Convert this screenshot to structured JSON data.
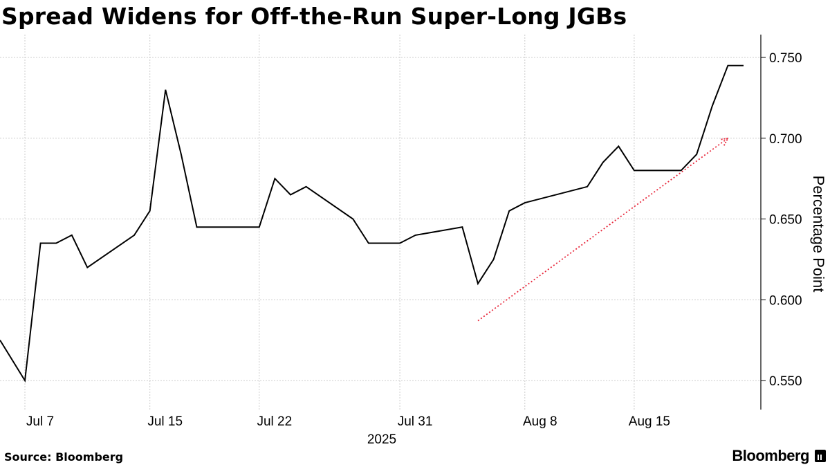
{
  "title": "Spread Widens for Off-the-Run Super-Long JGBs",
  "source": "Source: Bloomberg",
  "brand": "Bloomberg",
  "brand_icon": "bloomberg-chart-icon",
  "colors": {
    "line": "#000000",
    "arrow": "#e8273b",
    "grid": "#cccccc",
    "background": "#ffffff"
  },
  "chart_data": {
    "type": "line",
    "title": "Spread Widens for Off-the-Run Super-Long JGBs",
    "ylabel": "Percentage Point",
    "xlabel": "",
    "y_axis_side": "right",
    "ylim": [
      0.53,
      0.76
    ],
    "y_ticks": [
      0.55,
      0.6,
      0.65,
      0.7,
      0.75
    ],
    "y_tick_labels": [
      "0.550",
      "0.600",
      "0.650",
      "0.700",
      "0.750"
    ],
    "x_range": [
      "2025-07-06",
      "2025-08-22"
    ],
    "x_ticks": [
      {
        "date": "2025-07-07",
        "label": "Jul 7"
      },
      {
        "date": "2025-07-15",
        "label": "Jul 15"
      },
      {
        "date": "2025-07-22",
        "label": "Jul 22"
      },
      {
        "date": "2025-07-31",
        "label": "Jul 31"
      },
      {
        "date": "2025-08-08",
        "label": "Aug 8"
      },
      {
        "date": "2025-08-15",
        "label": "Aug 15"
      }
    ],
    "year_label": "2025",
    "grid": true,
    "series": [
      {
        "x": [
          "2025-07-04",
          "2025-07-07",
          "2025-07-08",
          "2025-07-09",
          "2025-07-10",
          "2025-07-11",
          "2025-07-14",
          "2025-07-15",
          "2025-07-16",
          "2025-07-17",
          "2025-07-18",
          "2025-07-22",
          "2025-07-23",
          "2025-07-24",
          "2025-07-25",
          "2025-07-28",
          "2025-07-29",
          "2025-07-30",
          "2025-07-31",
          "2025-08-01",
          "2025-08-04",
          "2025-08-05",
          "2025-08-06",
          "2025-08-07",
          "2025-08-08",
          "2025-08-12",
          "2025-08-13",
          "2025-08-14",
          "2025-08-15",
          "2025-08-18",
          "2025-08-19",
          "2025-08-20",
          "2025-08-21",
          "2025-08-22"
        ],
        "y": [
          0.575,
          0.55,
          0.635,
          0.635,
          0.64,
          0.62,
          0.64,
          0.655,
          0.73,
          0.69,
          0.645,
          0.645,
          0.675,
          0.665,
          0.67,
          0.65,
          0.635,
          0.635,
          0.635,
          0.64,
          0.645,
          0.61,
          0.625,
          0.655,
          0.66,
          0.67,
          0.685,
          0.695,
          0.68,
          0.68,
          0.69,
          0.72,
          0.745,
          0.745
        ]
      }
    ],
    "annotations": [
      {
        "type": "trend-arrow",
        "style": "dotted",
        "color": "#e8273b",
        "from": {
          "x": "2025-08-05",
          "y": 0.587
        },
        "to": {
          "x": "2025-08-21",
          "y": 0.7
        }
      }
    ]
  }
}
